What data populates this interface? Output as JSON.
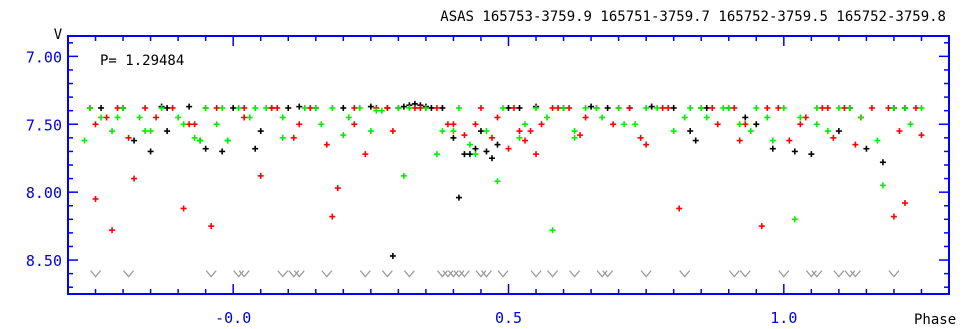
{
  "chart_data": {
    "type": "scatter",
    "title": "ASAS 165753-3759.9 165751-3759.7 165752-3759.5 165752-3759.8",
    "annotation": "P= 1.29484",
    "ylabel": "V",
    "xlabel": "Phase",
    "xlim": [
      -0.3,
      1.3
    ],
    "ylim": [
      8.75,
      6.85
    ],
    "y_inverted": true,
    "xticks": [
      -0.0,
      0.5,
      1.0
    ],
    "xtick_labels": [
      "-0.0",
      "0.5",
      "1.0"
    ],
    "yticks": [
      7.0,
      7.5,
      8.0,
      8.5
    ],
    "ytick_labels": [
      "7.00",
      "7.50",
      "8.00",
      "8.50"
    ],
    "grid": false,
    "colors": {
      "axis": "#0000ff",
      "tick_label": "#0000dd",
      "black": "#000000",
      "red": "#ff0000",
      "green": "#00ee00",
      "gray": "#999999"
    },
    "series": [
      {
        "color": "black",
        "marker": "plus",
        "x": [
          -0.24,
          -0.2,
          -0.18,
          -0.15,
          -0.13,
          -0.12,
          -0.08,
          -0.06,
          -0.05,
          -0.02,
          0.0,
          0.04,
          0.05,
          0.07,
          0.1,
          0.12,
          0.15,
          0.2,
          0.25,
          0.28,
          0.3,
          0.31,
          0.32,
          0.33,
          0.34,
          0.35,
          0.36,
          0.38,
          0.4,
          0.42,
          0.44,
          0.45,
          0.47,
          0.48,
          0.5,
          0.52,
          0.55,
          0.6,
          0.65,
          0.68,
          0.72,
          0.76,
          0.8,
          0.83,
          0.84,
          0.86,
          0.9,
          0.93,
          0.95,
          0.98,
          1.02,
          1.05,
          1.1,
          1.12,
          1.15,
          1.18,
          1.2,
          1.22,
          0.41,
          0.29,
          -0.12,
          0.46,
          0.43
        ],
        "y": [
          7.38,
          7.38,
          7.62,
          7.7,
          7.37,
          7.55,
          7.37,
          7.62,
          7.68,
          7.7,
          7.38,
          7.68,
          7.55,
          7.38,
          7.38,
          7.37,
          7.38,
          7.38,
          7.37,
          7.38,
          7.38,
          7.37,
          7.36,
          7.35,
          7.36,
          7.37,
          7.38,
          7.38,
          7.6,
          7.72,
          7.68,
          7.55,
          7.75,
          7.65,
          7.38,
          7.38,
          7.37,
          7.38,
          7.37,
          7.38,
          7.38,
          7.37,
          7.38,
          7.55,
          7.62,
          7.38,
          7.38,
          7.45,
          7.5,
          7.68,
          7.7,
          7.72,
          7.55,
          7.38,
          7.68,
          7.78,
          7.38,
          7.38,
          8.04,
          8.47,
          7.38,
          7.7,
          7.72
        ]
      },
      {
        "color": "red",
        "marker": "plus",
        "x": [
          -0.26,
          -0.25,
          -0.23,
          -0.21,
          -0.19,
          -0.18,
          -0.16,
          -0.14,
          -0.11,
          -0.09,
          -0.07,
          -0.04,
          -0.03,
          -0.01,
          0.02,
          0.05,
          0.08,
          0.11,
          0.14,
          0.17,
          0.19,
          0.22,
          0.24,
          0.26,
          0.29,
          0.33,
          0.37,
          0.39,
          0.42,
          0.45,
          0.48,
          0.5,
          0.51,
          0.53,
          0.54,
          0.56,
          0.58,
          0.61,
          0.63,
          0.66,
          0.69,
          0.72,
          0.75,
          0.78,
          0.81,
          0.85,
          0.88,
          0.91,
          0.93,
          0.96,
          0.99,
          1.01,
          1.04,
          1.07,
          1.09,
          1.11,
          1.13,
          1.16,
          1.19,
          1.21,
          1.25,
          -0.25,
          -0.22,
          -0.08,
          -0.05,
          0.02,
          0.07,
          0.12,
          0.18,
          0.22,
          0.28,
          0.34,
          0.4,
          0.44,
          0.47,
          0.52,
          0.55,
          0.59,
          0.64,
          0.7,
          0.74,
          0.79,
          0.87,
          0.92,
          0.97,
          1.03,
          1.08,
          1.14,
          1.2,
          1.22,
          1.24
        ],
        "y": [
          7.38,
          7.5,
          7.45,
          7.38,
          7.6,
          7.9,
          7.38,
          7.45,
          7.38,
          8.12,
          7.5,
          8.25,
          7.38,
          7.62,
          7.38,
          7.88,
          7.38,
          7.6,
          7.38,
          7.65,
          7.97,
          7.38,
          7.72,
          7.38,
          7.55,
          7.38,
          7.38,
          7.5,
          7.58,
          7.38,
          7.45,
          7.68,
          7.38,
          7.62,
          7.55,
          7.5,
          7.38,
          7.38,
          7.58,
          7.38,
          7.5,
          7.38,
          7.65,
          7.38,
          8.12,
          7.38,
          7.5,
          7.38,
          7.5,
          8.25,
          7.38,
          7.62,
          7.45,
          7.38,
          7.6,
          7.38,
          7.65,
          7.38,
          7.38,
          7.55,
          7.58,
          8.05,
          8.28,
          7.5,
          7.38,
          7.45,
          7.38,
          7.5,
          8.18,
          7.5,
          7.38,
          7.38,
          7.5,
          7.5,
          7.6,
          7.55,
          7.72,
          7.38,
          7.45,
          7.38,
          7.6,
          7.38,
          7.38,
          7.62,
          7.38,
          7.5,
          7.38,
          7.45,
          8.18,
          8.08,
          7.38
        ]
      },
      {
        "color": "green",
        "marker": "plus",
        "x": [
          -0.27,
          -0.26,
          -0.24,
          -0.22,
          -0.2,
          -0.17,
          -0.15,
          -0.13,
          -0.1,
          -0.07,
          -0.05,
          -0.03,
          -0.01,
          0.01,
          0.03,
          0.06,
          0.09,
          0.13,
          0.16,
          0.18,
          0.2,
          0.23,
          0.25,
          0.27,
          0.3,
          0.32,
          0.35,
          0.38,
          0.41,
          0.43,
          0.46,
          0.49,
          0.52,
          0.55,
          0.57,
          0.6,
          0.62,
          0.64,
          0.67,
          0.7,
          0.73,
          0.77,
          0.8,
          0.83,
          0.86,
          0.89,
          0.92,
          0.95,
          0.98,
          1.0,
          1.03,
          1.06,
          1.08,
          1.1,
          1.14,
          1.17,
          1.2,
          1.23,
          1.25,
          -0.21,
          -0.16,
          -0.09,
          -0.06,
          -0.02,
          0.04,
          0.09,
          0.15,
          0.21,
          0.26,
          0.31,
          0.37,
          0.4,
          0.44,
          0.48,
          0.53,
          0.58,
          0.62,
          0.66,
          0.71,
          0.75,
          0.82,
          0.85,
          0.9,
          0.94,
          0.97,
          1.02,
          1.06,
          1.12,
          1.18,
          1.22
        ],
        "y": [
          7.62,
          7.38,
          7.45,
          7.55,
          7.38,
          7.45,
          7.55,
          7.38,
          7.45,
          7.6,
          7.38,
          7.5,
          7.62,
          7.38,
          7.45,
          7.38,
          7.6,
          7.38,
          7.5,
          7.38,
          7.58,
          7.38,
          7.55,
          7.4,
          7.38,
          7.38,
          7.38,
          7.55,
          7.38,
          7.65,
          7.55,
          7.38,
          7.6,
          7.38,
          7.45,
          7.38,
          7.55,
          7.38,
          7.45,
          7.38,
          7.5,
          7.38,
          7.55,
          7.38,
          7.45,
          7.38,
          7.5,
          7.38,
          7.62,
          7.38,
          7.45,
          7.38,
          7.55,
          7.38,
          7.45,
          7.62,
          7.38,
          7.5,
          7.38,
          7.45,
          7.55,
          7.5,
          7.62,
          7.38,
          7.38,
          7.45,
          7.38,
          7.45,
          7.4,
          7.88,
          7.72,
          7.55,
          7.72,
          7.92,
          7.5,
          8.28,
          7.6,
          7.38,
          7.5,
          7.38,
          7.45,
          7.38,
          7.38,
          7.55,
          7.45,
          8.2,
          7.5,
          7.38,
          7.95,
          7.38
        ]
      },
      {
        "color": "gray",
        "marker": "v",
        "x": [
          -0.25,
          -0.19,
          -0.04,
          0.01,
          0.02,
          0.09,
          0.11,
          0.12,
          0.17,
          0.24,
          0.28,
          0.32,
          0.38,
          0.39,
          0.4,
          0.41,
          0.42,
          0.45,
          0.46,
          0.49,
          0.55,
          0.58,
          0.62,
          0.67,
          0.68,
          0.75,
          0.82,
          0.91,
          0.93,
          1.0,
          1.05,
          1.06,
          1.1,
          1.12,
          1.13,
          1.2
        ],
        "y": [
          8.6,
          8.6,
          8.6,
          8.6,
          8.6,
          8.6,
          8.6,
          8.6,
          8.6,
          8.6,
          8.6,
          8.6,
          8.6,
          8.6,
          8.6,
          8.6,
          8.6,
          8.6,
          8.6,
          8.6,
          8.6,
          8.6,
          8.6,
          8.6,
          8.6,
          8.6,
          8.6,
          8.6,
          8.6,
          8.6,
          8.6,
          8.6,
          8.6,
          8.6,
          8.6,
          8.6
        ]
      }
    ]
  }
}
